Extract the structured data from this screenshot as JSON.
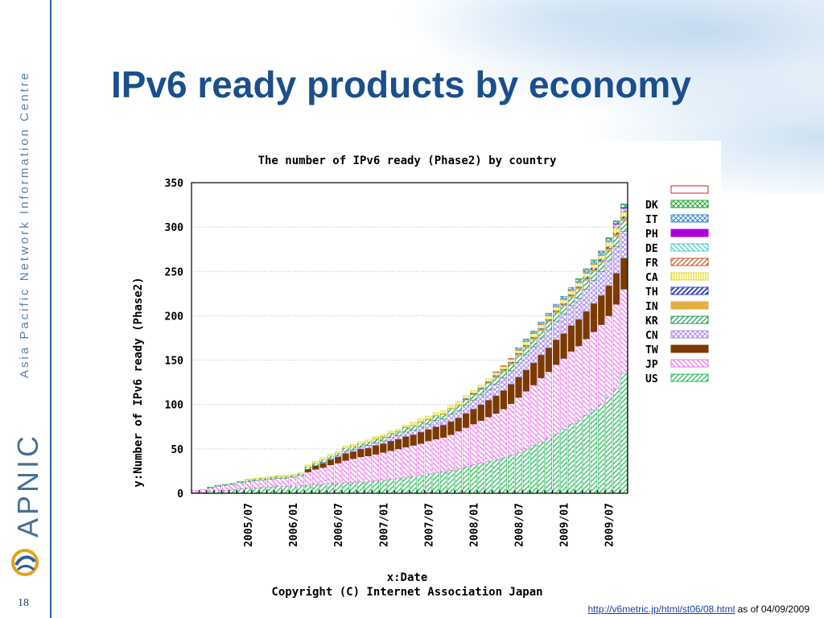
{
  "slide": {
    "title": "IPv6 ready products by economy",
    "side_label": "Asia Pacific Network Information Centre",
    "logo_text": "APNIC",
    "slide_number": "18",
    "source_link": "http://v6metric.jp/html/st06/08.html",
    "source_suffix": " as of 04/09/2009",
    "accent_color": "#1a4f8c"
  },
  "chart_data": {
    "type": "bar",
    "stacked": true,
    "title": "The number of IPv6 ready (Phase2) by country",
    "xlabel": "x:Date",
    "ylabel": "y:Number of IPv6 ready (Phase2)",
    "copyright": "Copyright (C) Internet Association Japan",
    "ylim": [
      0,
      350
    ],
    "yticks": [
      0,
      50,
      100,
      150,
      200,
      250,
      300,
      350
    ],
    "xtick_labels": [
      "2005/07",
      "2006/01",
      "2006/07",
      "2007/01",
      "2007/07",
      "2008/01",
      "2008/07",
      "2009/01",
      "2009/07"
    ],
    "legend_position": "right",
    "categories": [
      "2004/12",
      "2005/01",
      "2005/02",
      "2005/03",
      "2005/04",
      "2005/05",
      "2005/06",
      "2005/07",
      "2005/08",
      "2005/09",
      "2005/10",
      "2005/11",
      "2005/12",
      "2006/01",
      "2006/02",
      "2006/03",
      "2006/04",
      "2006/05",
      "2006/06",
      "2006/07",
      "2006/08",
      "2006/09",
      "2006/10",
      "2006/11",
      "2006/12",
      "2007/01",
      "2007/02",
      "2007/03",
      "2007/04",
      "2007/05",
      "2007/06",
      "2007/07",
      "2007/08",
      "2007/09",
      "2007/10",
      "2007/11",
      "2007/12",
      "2008/01",
      "2008/02",
      "2008/03",
      "2008/04",
      "2008/05",
      "2008/06",
      "2008/07",
      "2008/08",
      "2008/09",
      "2008/10",
      "2008/11",
      "2008/12",
      "2009/01",
      "2009/02",
      "2009/03",
      "2009/04",
      "2009/05",
      "2009/06",
      "2009/07",
      "2009/08",
      "2009/09"
    ],
    "series": [
      {
        "name": "US",
        "color": "#22bb55",
        "values": [
          1,
          1,
          2,
          3,
          3,
          4,
          5,
          6,
          6,
          7,
          7,
          8,
          8,
          8,
          9,
          9,
          10,
          10,
          11,
          11,
          12,
          12,
          13,
          13,
          14,
          15,
          16,
          17,
          18,
          19,
          20,
          22,
          23,
          24,
          26,
          28,
          30,
          32,
          34,
          36,
          38,
          40,
          43,
          46,
          50,
          54,
          58,
          62,
          67,
          72,
          78,
          82,
          88,
          94,
          100,
          108,
          118,
          135
        ]
      },
      {
        "name": "JP",
        "color": "#ee77ee",
        "values": [
          2,
          3,
          4,
          5,
          6,
          6,
          7,
          7,
          8,
          8,
          9,
          9,
          9,
          10,
          11,
          15,
          17,
          19,
          21,
          23,
          25,
          27,
          28,
          29,
          30,
          31,
          32,
          33,
          34,
          35,
          36,
          37,
          38,
          39,
          40,
          42,
          44,
          46,
          48,
          50,
          52,
          55,
          58,
          62,
          65,
          68,
          72,
          75,
          78,
          80,
          82,
          84,
          86,
          88,
          90,
          92,
          95,
          95
        ]
      },
      {
        "name": "TW",
        "color": "#7a3a00",
        "values": [
          0,
          0,
          0,
          0,
          0,
          0,
          0,
          0,
          0,
          0,
          0,
          0,
          0,
          0,
          0,
          3,
          4,
          5,
          6,
          7,
          8,
          8,
          9,
          9,
          10,
          10,
          11,
          11,
          12,
          12,
          13,
          13,
          14,
          14,
          15,
          15,
          16,
          17,
          18,
          19,
          20,
          21,
          22,
          23,
          24,
          25,
          26,
          27,
          28,
          28,
          29,
          30,
          31,
          32,
          33,
          34,
          35,
          35
        ]
      },
      {
        "name": "CN",
        "color": "#aa88ee",
        "values": [
          0,
          0,
          0,
          0,
          0,
          0,
          0,
          0,
          0,
          0,
          0,
          0,
          0,
          0,
          0,
          0,
          0,
          1,
          1,
          1,
          2,
          2,
          2,
          3,
          3,
          3,
          4,
          4,
          5,
          5,
          6,
          6,
          7,
          7,
          8,
          8,
          9,
          10,
          11,
          12,
          13,
          14,
          15,
          16,
          17,
          18,
          19,
          20,
          21,
          22,
          23,
          24,
          25,
          26,
          27,
          28,
          30,
          30
        ]
      },
      {
        "name": "KR",
        "color": "#229955",
        "values": [
          0,
          0,
          1,
          1,
          1,
          1,
          1,
          2,
          2,
          2,
          2,
          2,
          2,
          2,
          2,
          3,
          3,
          3,
          3,
          3,
          4,
          4,
          4,
          4,
          4,
          4,
          4,
          4,
          5,
          5,
          5,
          5,
          5,
          5,
          6,
          6,
          6,
          6,
          6,
          7,
          7,
          7,
          7,
          8,
          8,
          8,
          8,
          9,
          9,
          9,
          9,
          10,
          10,
          10,
          10,
          11,
          11,
          12
        ]
      },
      {
        "name": "IN",
        "color": "#e0b040",
        "values": [
          0,
          0,
          0,
          0,
          0,
          0,
          0,
          0,
          0,
          0,
          0,
          0,
          0,
          0,
          0,
          0,
          0,
          0,
          0,
          0,
          0,
          0,
          0,
          0,
          1,
          1,
          1,
          1,
          1,
          1,
          1,
          1,
          1,
          1,
          1,
          1,
          1,
          1,
          1,
          1,
          2,
          2,
          2,
          2,
          2,
          2,
          2,
          2,
          2,
          2,
          2,
          2,
          2,
          2,
          2,
          3,
          3,
          3
        ]
      },
      {
        "name": "TH",
        "color": "#3344bb",
        "values": [
          0,
          0,
          0,
          0,
          0,
          0,
          0,
          0,
          0,
          0,
          0,
          0,
          0,
          0,
          0,
          0,
          0,
          0,
          0,
          0,
          0,
          0,
          0,
          0,
          0,
          0,
          0,
          0,
          0,
          0,
          0,
          0,
          0,
          0,
          0,
          0,
          1,
          1,
          1,
          1,
          1,
          1,
          1,
          1,
          1,
          1,
          1,
          1,
          1,
          1,
          1,
          1,
          2,
          2,
          2,
          2,
          2,
          2
        ]
      },
      {
        "name": "CA",
        "color": "#dddd22",
        "values": [
          0,
          0,
          0,
          0,
          0,
          0,
          0,
          1,
          1,
          1,
          1,
          1,
          1,
          1,
          1,
          2,
          2,
          2,
          2,
          2,
          2,
          2,
          2,
          2,
          2,
          2,
          2,
          2,
          2,
          3,
          3,
          3,
          3,
          3,
          3,
          3,
          3,
          3,
          3,
          3,
          3,
          3,
          3,
          3,
          4,
          4,
          4,
          4,
          4,
          4,
          4,
          4,
          4,
          4,
          4,
          5,
          5,
          5
        ]
      },
      {
        "name": "FR",
        "color": "#cc5522",
        "values": [
          0,
          0,
          0,
          0,
          0,
          0,
          0,
          0,
          0,
          0,
          0,
          0,
          0,
          0,
          0,
          0,
          0,
          0,
          0,
          0,
          0,
          0,
          0,
          0,
          0,
          0,
          0,
          0,
          0,
          0,
          0,
          0,
          0,
          0,
          0,
          0,
          0,
          0,
          0,
          0,
          1,
          1,
          1,
          1,
          1,
          1,
          1,
          1,
          1,
          1,
          1,
          1,
          1,
          1,
          1,
          1,
          2,
          2
        ]
      },
      {
        "name": "DE",
        "color": "#44cccc",
        "values": [
          0,
          0,
          0,
          0,
          0,
          0,
          0,
          0,
          0,
          0,
          0,
          0,
          0,
          0,
          0,
          0,
          0,
          0,
          0,
          0,
          0,
          0,
          0,
          0,
          0,
          0,
          0,
          0,
          0,
          0,
          0,
          0,
          0,
          0,
          0,
          0,
          0,
          0,
          0,
          0,
          0,
          0,
          0,
          1,
          1,
          1,
          1,
          1,
          1,
          1,
          1,
          1,
          1,
          1,
          1,
          1,
          2,
          2
        ]
      },
      {
        "name": "PH",
        "color": "#aa00dd",
        "values": [
          0,
          0,
          0,
          0,
          0,
          0,
          0,
          0,
          0,
          0,
          0,
          0,
          0,
          0,
          0,
          0,
          0,
          0,
          0,
          0,
          0,
          0,
          0,
          0,
          0,
          0,
          0,
          0,
          0,
          0,
          0,
          0,
          0,
          0,
          0,
          0,
          0,
          0,
          0,
          0,
          0,
          0,
          0,
          0,
          0,
          0,
          0,
          0,
          0,
          0,
          0,
          0,
          0,
          0,
          0,
          0,
          1,
          1
        ]
      },
      {
        "name": "IT",
        "color": "#3388cc",
        "values": [
          0,
          0,
          0,
          0,
          0,
          0,
          0,
          0,
          0,
          0,
          0,
          0,
          0,
          0,
          0,
          0,
          0,
          0,
          0,
          0,
          0,
          0,
          0,
          0,
          0,
          0,
          0,
          0,
          0,
          0,
          0,
          0,
          0,
          0,
          0,
          0,
          0,
          0,
          0,
          0,
          0,
          0,
          0,
          1,
          1,
          1,
          1,
          1,
          1,
          2,
          2,
          2,
          2,
          2,
          2,
          2,
          2,
          3
        ]
      },
      {
        "name": "DK",
        "color": "#22aa33",
        "values": [
          0,
          0,
          0,
          0,
          0,
          0,
          0,
          0,
          0,
          0,
          0,
          0,
          0,
          0,
          0,
          0,
          0,
          0,
          0,
          0,
          0,
          0,
          0,
          0,
          0,
          0,
          0,
          0,
          0,
          0,
          0,
          0,
          0,
          0,
          0,
          0,
          0,
          0,
          0,
          0,
          0,
          0,
          0,
          0,
          0,
          0,
          0,
          0,
          0,
          0,
          0,
          1,
          1,
          1,
          1,
          1,
          1,
          1
        ]
      },
      {
        "name": "",
        "color": "#dd2222",
        "values": [
          0,
          0,
          0,
          0,
          0,
          0,
          0,
          0,
          0,
          0,
          0,
          0,
          0,
          0,
          0,
          0,
          0,
          0,
          0,
          0,
          0,
          0,
          0,
          0,
          0,
          0,
          0,
          0,
          0,
          0,
          0,
          0,
          0,
          0,
          0,
          0,
          0,
          0,
          0,
          0,
          0,
          0,
          0,
          0,
          0,
          0,
          0,
          0,
          0,
          0,
          0,
          0,
          0,
          0,
          0,
          0,
          0,
          0
        ]
      }
    ]
  }
}
